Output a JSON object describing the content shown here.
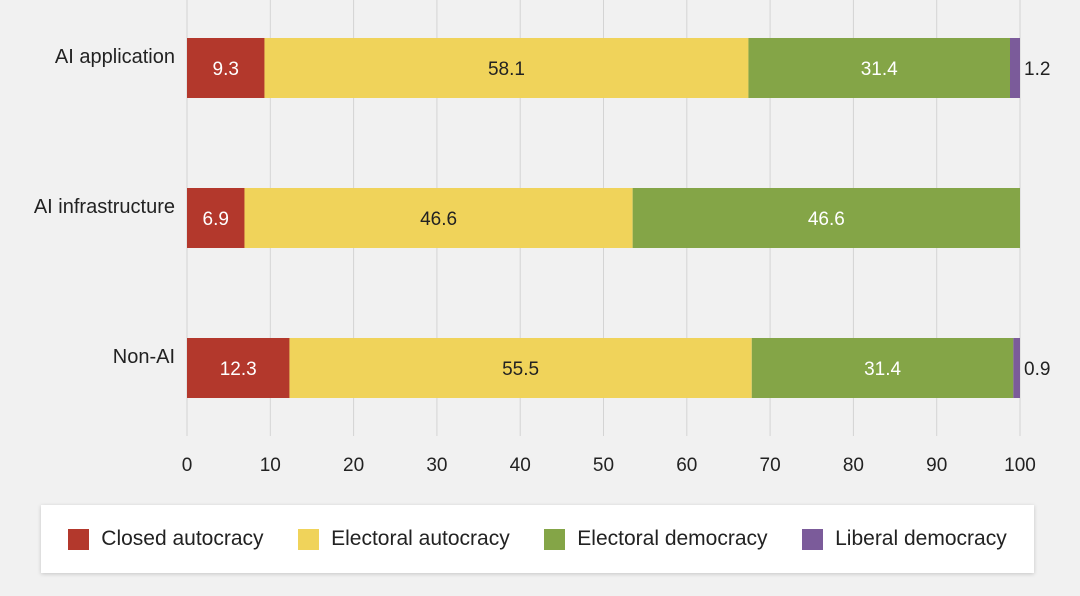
{
  "chart_data": {
    "type": "bar",
    "orientation": "horizontal",
    "stacked": true,
    "categories": [
      "AI application",
      "AI infrastructure",
      "Non-AI"
    ],
    "series": [
      {
        "name": "Closed autocracy",
        "color": "#b3382c",
        "values": [
          9.3,
          6.9,
          12.3
        ],
        "label_color": "#ffffff"
      },
      {
        "name": "Electoral autocracy",
        "color": "#f0d35a",
        "values": [
          58.1,
          46.6,
          55.5
        ],
        "label_color": "#222222"
      },
      {
        "name": "Electoral democracy",
        "color": "#84a547",
        "values": [
          31.4,
          46.6,
          31.4
        ],
        "label_color": "#ffffff"
      },
      {
        "name": "Liberal democracy",
        "color": "#7b5b9a",
        "values": [
          1.2,
          0,
          0.9
        ],
        "label_color": "#222222"
      }
    ],
    "data_labels": [
      [
        "9.3",
        "58.1",
        "31.4",
        "1.2"
      ],
      [
        "6.9",
        "46.6",
        "46.6",
        ""
      ],
      [
        "12.3",
        "55.5",
        "31.4",
        "0.9"
      ]
    ],
    "xticks": [
      "0",
      "10",
      "20",
      "30",
      "40",
      "50",
      "60",
      "70",
      "80",
      "90",
      "100"
    ],
    "xlim": [
      0,
      100
    ],
    "grid": true,
    "legend_position": "bottom"
  }
}
